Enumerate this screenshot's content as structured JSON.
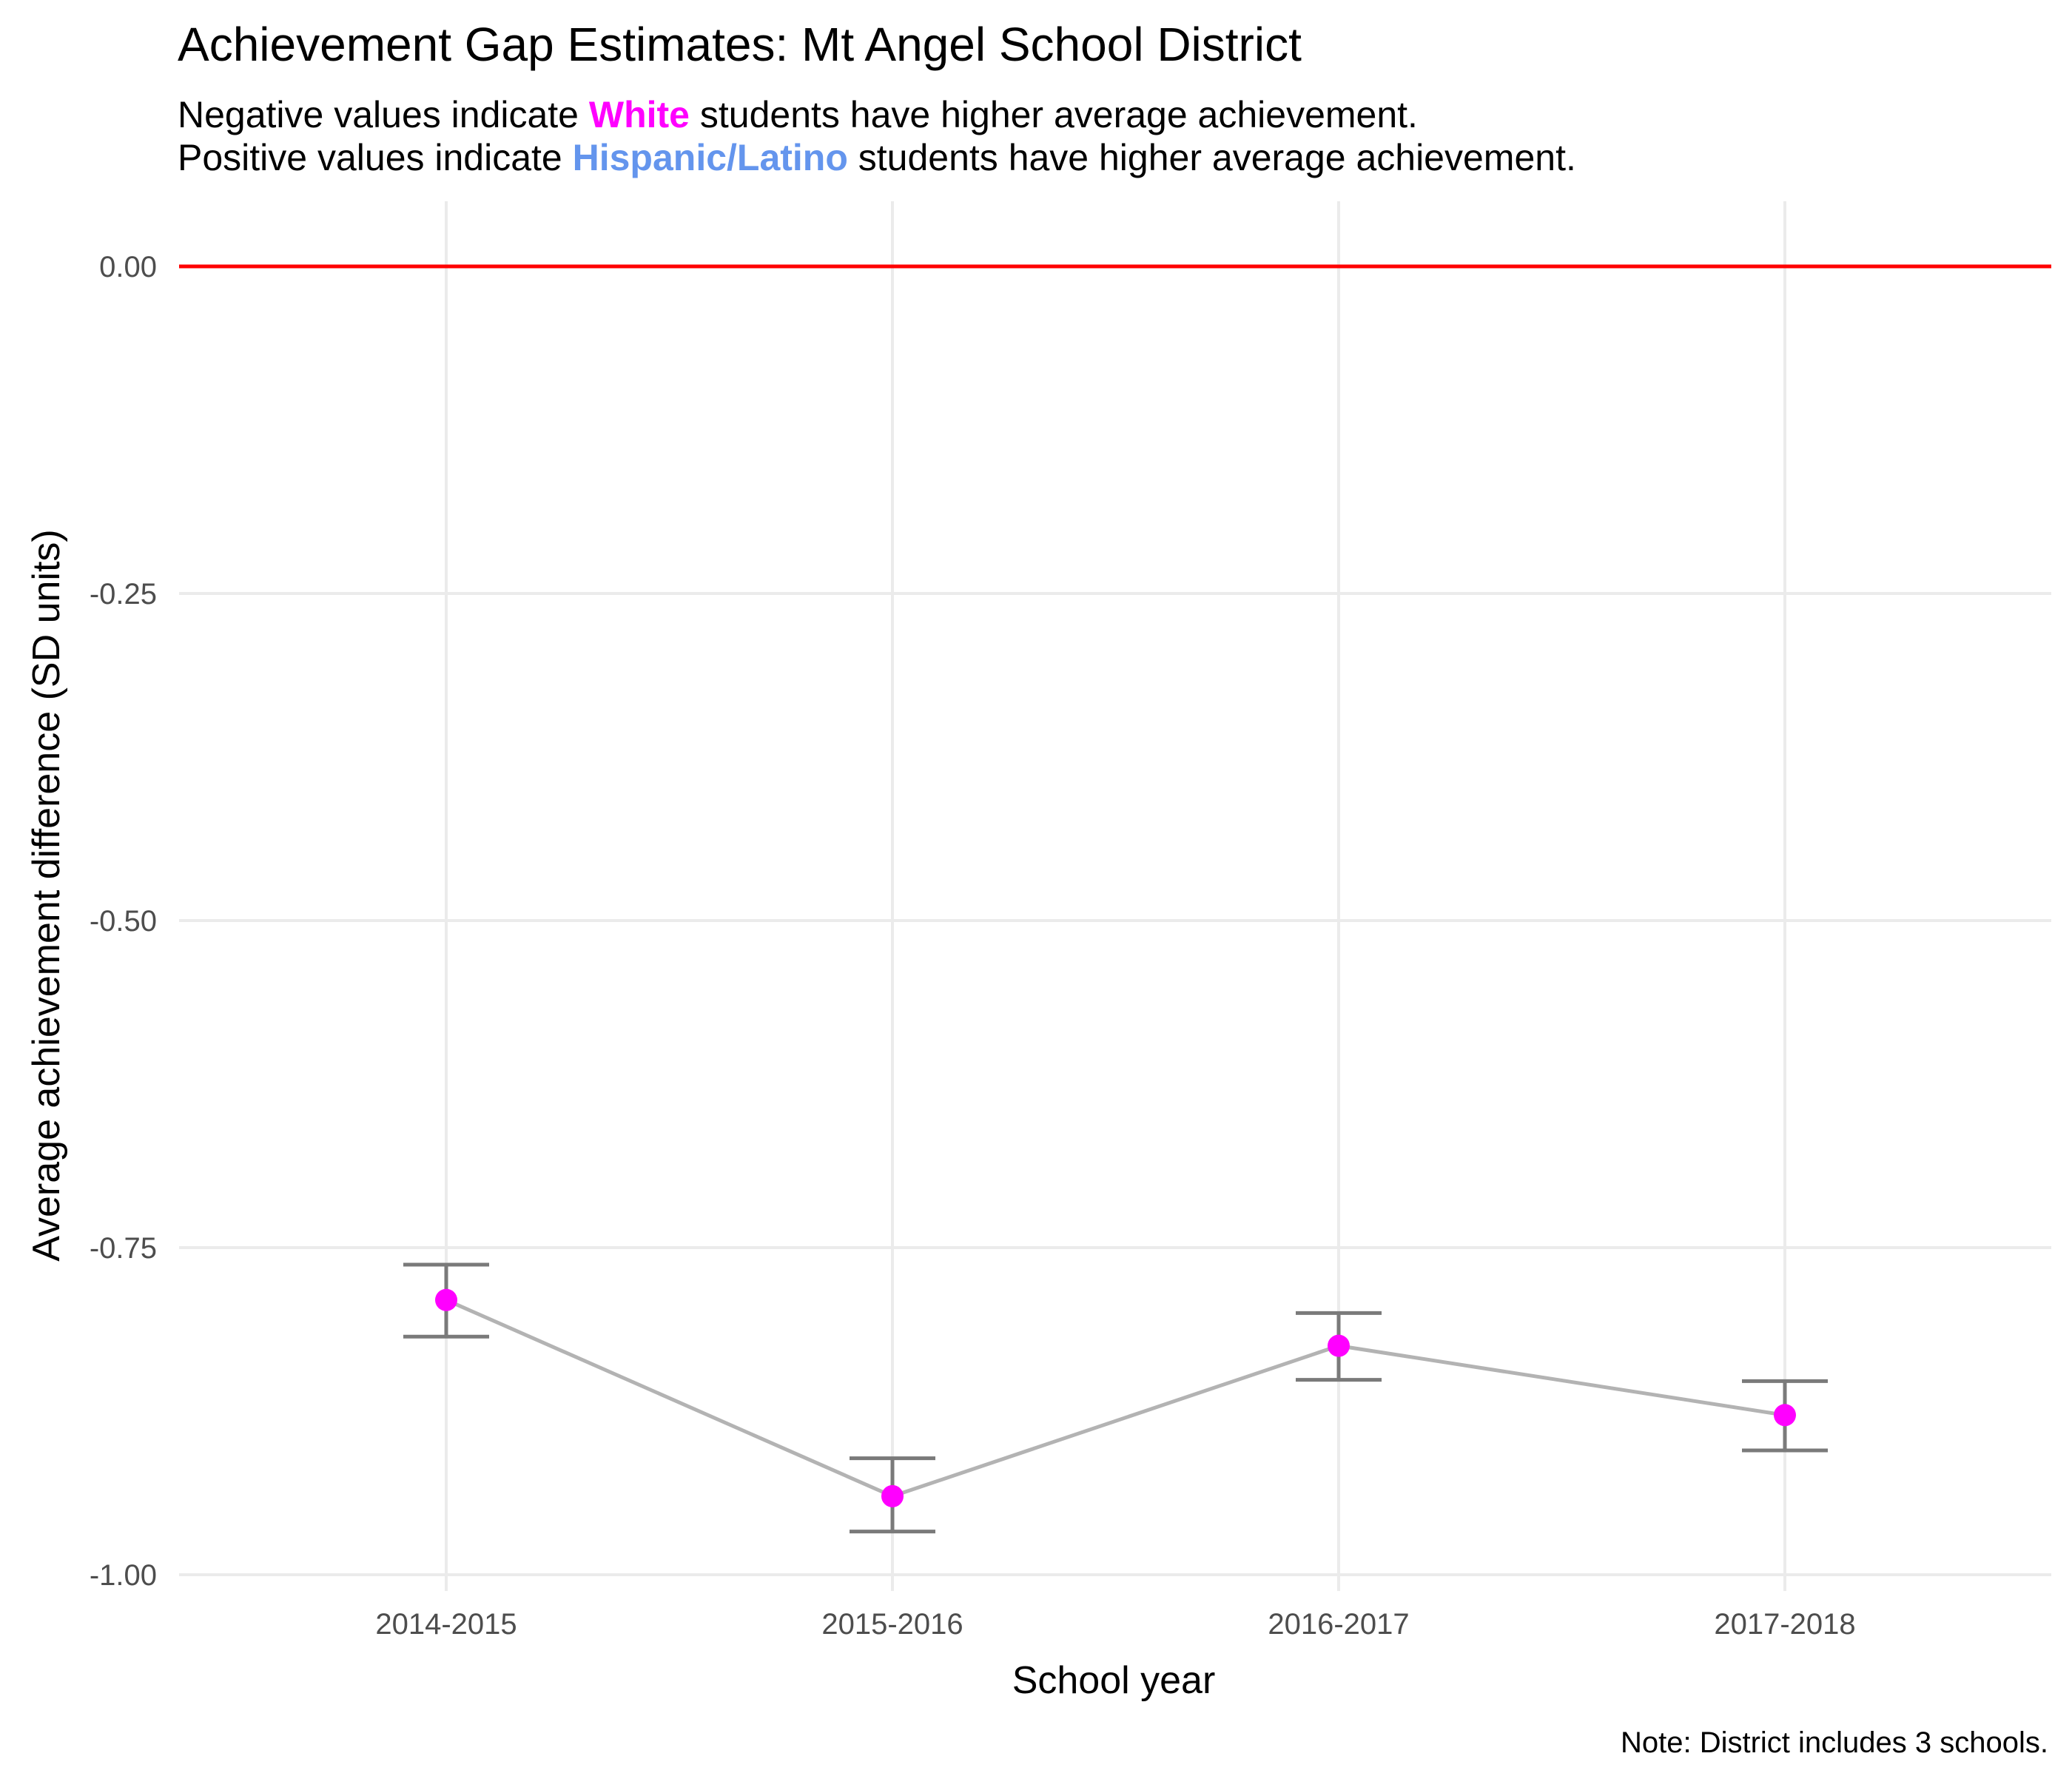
{
  "chart_data": {
    "type": "line",
    "title": "Achievement Gap Estimates: Mt Angel School District",
    "subtitle": {
      "line1": {
        "before": "Negative values indicate ",
        "highlight": "White",
        "after": " students have higher average achievement."
      },
      "line2": {
        "before": "Positive values indicate ",
        "highlight": "Hispanic/Latino",
        "after": " students have higher average achievement."
      }
    },
    "xlabel": "School year",
    "ylabel": "Average achievement difference (SD units)",
    "caption": "Note: District includes 3 schools.",
    "categories": [
      "2014-2015",
      "2015-2016",
      "2016-2017",
      "2017-2018"
    ],
    "values": [
      -0.79,
      -0.94,
      -0.825,
      -0.878
    ],
    "error_low": [
      -0.818,
      -0.967,
      -0.851,
      -0.905
    ],
    "error_high": [
      -0.763,
      -0.911,
      -0.8,
      -0.852
    ],
    "ylim": [
      -1.0,
      0.0
    ],
    "yticks": [
      0.0,
      -0.25,
      -0.5,
      -0.75,
      -1.0
    ],
    "ytick_labels": [
      "0.00",
      "-0.25",
      "-0.50",
      "-0.75",
      "-1.00"
    ],
    "reference_line": 0.0,
    "grid": true,
    "colors": {
      "point": "#ff00ff",
      "line": "#b3b3b3",
      "errorbar": "#7a7a7a",
      "reference": "#ff0000",
      "highlight_white": "#ff00ff",
      "highlight_hispanic": "#6495ed",
      "grid": "#ebebeb"
    }
  }
}
